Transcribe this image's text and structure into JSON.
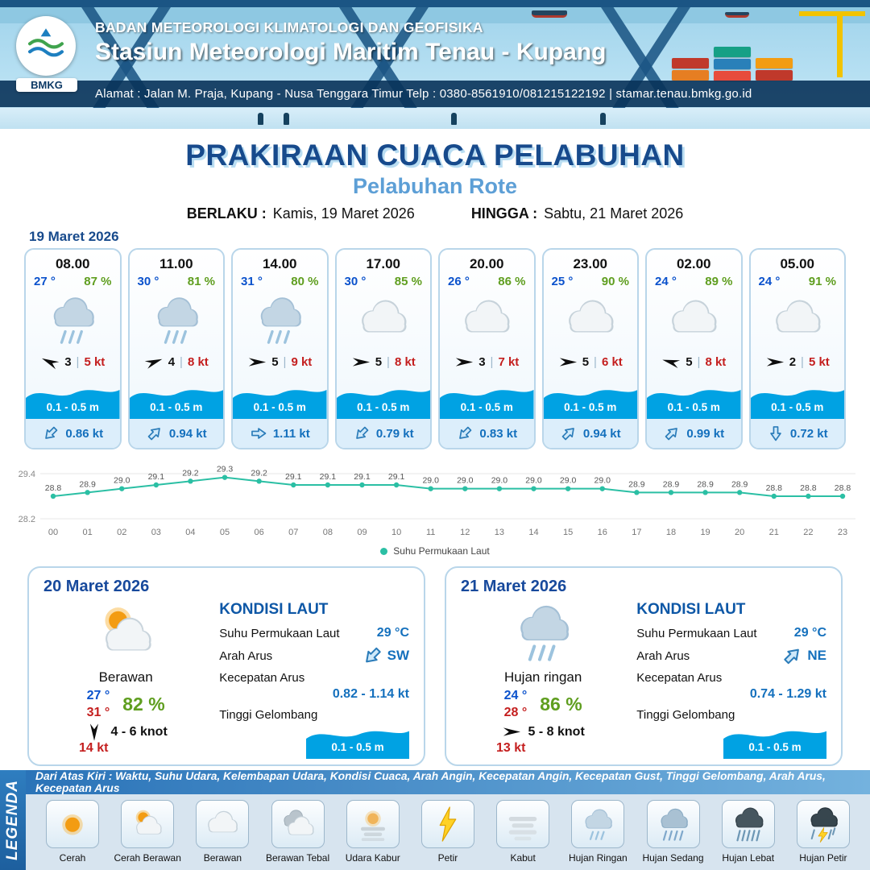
{
  "header": {
    "org_name": "BADAN METEOROLOGI KLIMATOLOGI DAN GEOFISIKA",
    "station_name": "Stasiun Meteorologi Maritim Tenau - Kupang",
    "address_line": "Alamat : Jalan M. Praja, Kupang - Nusa Tenggara Timur Telp : 0380-8561910/081215122192  | stamar.tenau.bmkg.go.id",
    "logo_text": "BMKG"
  },
  "title": {
    "main": "PRAKIRAAN CUACA PELABUHAN",
    "port": "Pelabuhan Rote",
    "valid_from_label": "BERLAKU :",
    "valid_from": "Kamis, 19 Maret 2026",
    "valid_to_label": "HINGGA :",
    "valid_to": "Sabtu, 21 Maret 2026"
  },
  "hourly": {
    "date": "19 Maret 2026",
    "separator": "|",
    "cards": [
      {
        "time": "08.00",
        "temp": "27 °",
        "humidity": "87 %",
        "icon": "hujan-ringan",
        "wind_dir_deg": 205,
        "wind_speed": "3",
        "gust": "5 kt",
        "wave_height": "0.1 - 0.5 m",
        "current_dir_deg": 135,
        "current_speed": "0.86 kt"
      },
      {
        "time": "11.00",
        "temp": "30 °",
        "humidity": "81 %",
        "icon": "hujan-ringan",
        "wind_dir_deg": 340,
        "wind_speed": "4",
        "gust": "8 kt",
        "wave_height": "0.1 - 0.5 m",
        "current_dir_deg": 315,
        "current_speed": "0.94 kt"
      },
      {
        "time": "14.00",
        "temp": "31 °",
        "humidity": "80 %",
        "icon": "hujan-ringan",
        "wind_dir_deg": 0,
        "wind_speed": "5",
        "gust": "9 kt",
        "wave_height": "0.1 - 0.5 m",
        "current_dir_deg": 0,
        "current_speed": "1.11 kt"
      },
      {
        "time": "17.00",
        "temp": "30 °",
        "humidity": "85 %",
        "icon": "berawan",
        "wind_dir_deg": 0,
        "wind_speed": "5",
        "gust": "8 kt",
        "wave_height": "0.1 - 0.5 m",
        "current_dir_deg": 135,
        "current_speed": "0.79 kt"
      },
      {
        "time": "20.00",
        "temp": "26 °",
        "humidity": "86 %",
        "icon": "berawan",
        "wind_dir_deg": 0,
        "wind_speed": "3",
        "gust": "7 kt",
        "wave_height": "0.1 - 0.5 m",
        "current_dir_deg": 135,
        "current_speed": "0.83 kt"
      },
      {
        "time": "23.00",
        "temp": "25 °",
        "humidity": "90 %",
        "icon": "berawan",
        "wind_dir_deg": 0,
        "wind_speed": "5",
        "gust": "6 kt",
        "wave_height": "0.1 - 0.5 m",
        "current_dir_deg": 315,
        "current_speed": "0.94 kt"
      },
      {
        "time": "02.00",
        "temp": "24 °",
        "humidity": "89 %",
        "icon": "berawan",
        "wind_dir_deg": 195,
        "wind_speed": "5",
        "gust": "8 kt",
        "wave_height": "0.1 - 0.5 m",
        "current_dir_deg": 315,
        "current_speed": "0.99 kt"
      },
      {
        "time": "05.00",
        "temp": "24 °",
        "humidity": "91 %",
        "icon": "berawan",
        "wind_dir_deg": 0,
        "wind_speed": "2",
        "gust": "5 kt",
        "wave_height": "0.1 - 0.5 m",
        "current_dir_deg": 90,
        "current_speed": "0.72 kt"
      }
    ]
  },
  "chart_data": {
    "type": "line",
    "x": [
      "00",
      "01",
      "02",
      "03",
      "04",
      "05",
      "06",
      "07",
      "08",
      "09",
      "10",
      "11",
      "12",
      "13",
      "14",
      "15",
      "16",
      "17",
      "18",
      "19",
      "20",
      "21",
      "22",
      "23"
    ],
    "values": [
      28.8,
      28.9,
      29.0,
      29.1,
      29.2,
      29.3,
      29.2,
      29.1,
      29.1,
      29.1,
      29.1,
      29.0,
      29.0,
      29.0,
      29.0,
      29.0,
      29.0,
      28.9,
      28.9,
      28.9,
      28.9,
      28.8,
      28.8,
      28.8
    ],
    "ylim": [
      28.2,
      29.4
    ],
    "legend": "Suhu Permukaan Laut",
    "line_color": "#2bbfa4",
    "grid": true,
    "legend_position": "bottom",
    "title": "",
    "xlabel": "",
    "ylabel": ""
  },
  "daily_cards": [
    {
      "date": "20 Maret 2026",
      "icon": "cerah-berawan",
      "condition": "Berawan",
      "temp_min": "27 °",
      "temp_max": "31 °",
      "humidity": "82 %",
      "wind_dir_deg": 90,
      "wind_speed": "4 - 6 knot",
      "gust": "14 kt",
      "sea": {
        "title": "KONDISI LAUT",
        "sst_label": "Suhu Permukaan Laut",
        "sst_value": "29 °C",
        "current_dir_label": "Arah Arus",
        "current_dir": "SW",
        "current_dir_deg": 135,
        "current_speed_label": "Kecepatan Arus",
        "current_speed": "0.82 - 1.14 kt",
        "wave_label": "Tinggi Gelombang",
        "wave_height": "0.1 - 0.5 m"
      }
    },
    {
      "date": "21 Maret 2026",
      "icon": "hujan-ringan",
      "condition": "Hujan ringan",
      "temp_min": "24 °",
      "temp_max": "28 °",
      "humidity": "86 %",
      "wind_dir_deg": 0,
      "wind_speed": "5 - 8 knot",
      "gust": "13 kt",
      "sea": {
        "title": "KONDISI LAUT",
        "sst_label": "Suhu Permukaan Laut",
        "sst_value": "29 °C",
        "current_dir_label": "Arah Arus",
        "current_dir": "NE",
        "current_dir_deg": 315,
        "current_speed_label": "Kecepatan Arus",
        "current_speed": "0.74 - 1.29 kt",
        "wave_label": "Tinggi Gelombang",
        "wave_height": "0.1 - 0.5 m"
      }
    }
  ],
  "legend": {
    "title": "LEGENDA",
    "note": "Dari Atas Kiri : Waktu, Suhu Udara, Kelembapan Udara, Kondisi Cuaca, Arah Angin, Kecepatan Angin, Kecepatan Gust, Tinggi Gelombang, Arah Arus, Kecepatan Arus",
    "items": [
      {
        "label": "Cerah",
        "icon": "cerah"
      },
      {
        "label": "Cerah Berawan",
        "icon": "cerah-berawan"
      },
      {
        "label": "Berawan",
        "icon": "berawan"
      },
      {
        "label": "Berawan Tebal",
        "icon": "berawan-tebal"
      },
      {
        "label": "Udara Kabur",
        "icon": "udara-kabur"
      },
      {
        "label": "Petir",
        "icon": "petir"
      },
      {
        "label": "Kabut",
        "icon": "kabut"
      },
      {
        "label": "Hujan Ringan",
        "icon": "hujan-ringan"
      },
      {
        "label": "Hujan Sedang",
        "icon": "hujan-sedang"
      },
      {
        "label": "Hujan Lebat",
        "icon": "hujan-lebat"
      },
      {
        "label": "Hujan Petir",
        "icon": "hujan-petir"
      }
    ]
  }
}
